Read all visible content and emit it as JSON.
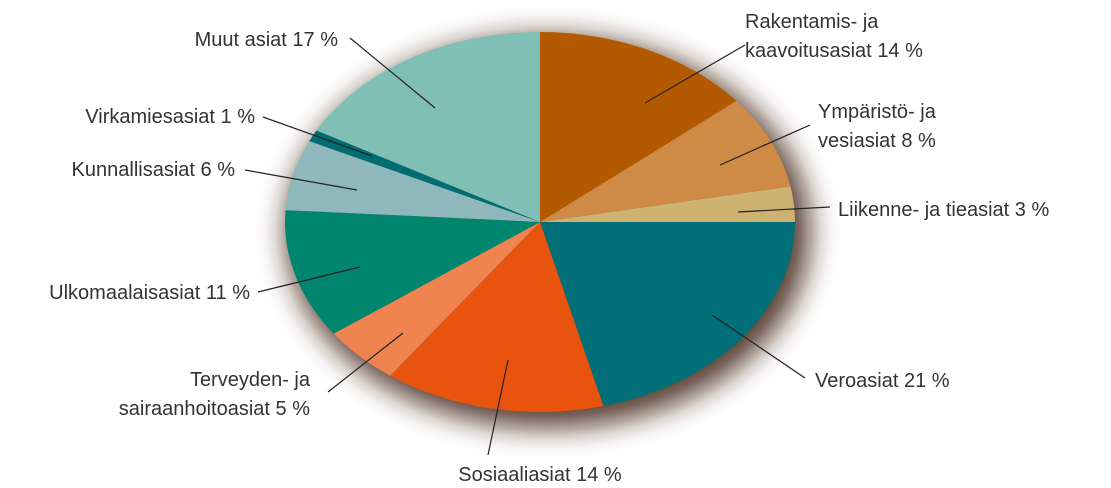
{
  "chart_data": {
    "type": "pie",
    "categories": [
      "Rakentamis- ja\nkaavoitusasiat",
      "Ympäristö- ja\nvesiasiat",
      "Liikenne- ja tieasiat",
      "Veroasiat",
      "Sosiaaliasiat",
      "Terveyden- ja\nsairaanhoitoasiat",
      "Ulkomaalaisasiat",
      "Kunnallisasiat",
      "Virkamiesasiat",
      "Muut asiat"
    ],
    "values": [
      14,
      8,
      3,
      21,
      14,
      5,
      11,
      6,
      1,
      17
    ],
    "value_labels": [
      "14 %",
      "8 %",
      "3 %",
      "21 %",
      "14 %",
      "5 %",
      "11 %",
      "6 %",
      "1 %",
      "17 %"
    ],
    "colors": [
      "#b35a00",
      "#cf8a45",
      "#cdb271",
      "#006f78",
      "#e8530e",
      "#ef8450",
      "#00866f",
      "#8fb8bc",
      "#006d73",
      "#7fbfb5"
    ]
  }
}
